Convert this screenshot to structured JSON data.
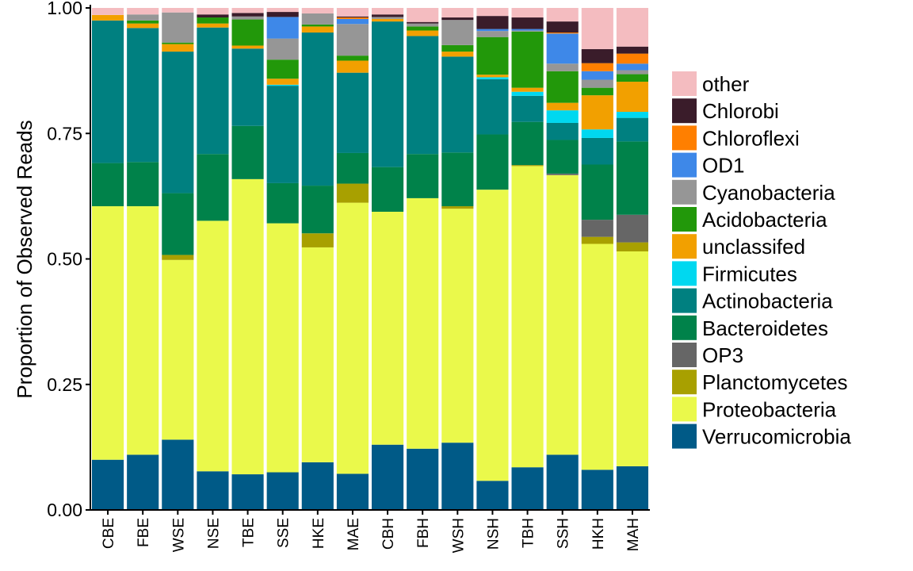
{
  "chart_data": {
    "type": "bar",
    "stacked": true,
    "ylabel": "Proportion of Observed Reads",
    "xlabel": "",
    "ylim": [
      0,
      1
    ],
    "yticks": [
      "0.00",
      "0.25",
      "0.50",
      "0.75",
      "1.00"
    ],
    "grid": false,
    "legend_position": "right",
    "categories": [
      "CBE",
      "FBE",
      "WSE",
      "NSE",
      "TBE",
      "SSE",
      "HKE",
      "MAE",
      "CBH",
      "FBH",
      "WSH",
      "NSH",
      "TBH",
      "SSH",
      "HKH",
      "MAH"
    ],
    "series": [
      {
        "name": "Verrucomicrobia",
        "color": "#005a87",
        "values": [
          0.1,
          0.11,
          0.14,
          0.077,
          0.071,
          0.075,
          0.095,
          0.072,
          0.13,
          0.122,
          0.134,
          0.058,
          0.085,
          0.11,
          0.08,
          0.087
        ]
      },
      {
        "name": "Proteobacteria",
        "color": "#eaf94b",
        "values": [
          0.505,
          0.495,
          0.358,
          0.499,
          0.588,
          0.496,
          0.428,
          0.54,
          0.464,
          0.499,
          0.466,
          0.58,
          0.6,
          0.557,
          0.45,
          0.428
        ]
      },
      {
        "name": "Planctomycetes",
        "color": "#a8a000",
        "values": [
          0,
          0,
          0.01,
          0,
          0,
          0,
          0.028,
          0.038,
          0,
          0,
          0.005,
          0,
          0.002,
          0,
          0.014,
          0.018
        ]
      },
      {
        "name": "OP3",
        "color": "#666666",
        "values": [
          0,
          0,
          0,
          0,
          0,
          0,
          0,
          0,
          0,
          0,
          0,
          0,
          0,
          0.003,
          0.034,
          0.055
        ]
      },
      {
        "name": "Bacteroidetes",
        "color": "#00824a",
        "values": [
          0.086,
          0.088,
          0.123,
          0.133,
          0.106,
          0.08,
          0.095,
          0.061,
          0.089,
          0.088,
          0.107,
          0.11,
          0.086,
          0.067,
          0.11,
          0.146
        ]
      },
      {
        "name": "Actinobacteria",
        "color": "#008080",
        "values": [
          0.284,
          0.267,
          0.282,
          0.252,
          0.154,
          0.194,
          0.305,
          0.16,
          0.29,
          0.235,
          0.191,
          0.11,
          0.052,
          0.034,
          0.053,
          0.047
        ]
      },
      {
        "name": "Firmicutes",
        "color": "#00d8f0",
        "values": [
          0,
          0,
          0,
          0,
          0,
          0.002,
          0,
          0,
          0,
          0,
          0,
          0.004,
          0.008,
          0.025,
          0.017,
          0.012
        ]
      },
      {
        "name": "unclassifed",
        "color": "#f2a000",
        "values": [
          0.011,
          0.009,
          0.015,
          0.008,
          0.006,
          0.012,
          0.012,
          0.024,
          0.005,
          0.011,
          0.01,
          0.005,
          0.008,
          0.015,
          0.068,
          0.06
        ]
      },
      {
        "name": "Acidobacteria",
        "color": "#22980a",
        "values": [
          0,
          0.006,
          0.003,
          0.012,
          0.052,
          0.038,
          0.004,
          0.01,
          0,
          0.008,
          0.013,
          0.075,
          0.112,
          0.063,
          0.015,
          0.015
        ]
      },
      {
        "name": "Cyanobacteria",
        "color": "#969696",
        "values": [
          0,
          0.012,
          0.06,
          0,
          0.006,
          0.042,
          0.022,
          0.063,
          0.004,
          0.006,
          0.05,
          0.012,
          0.002,
          0.015,
          0.016,
          0.008
        ]
      },
      {
        "name": "OD1",
        "color": "#3e88e8",
        "values": [
          0,
          0,
          0,
          0,
          0,
          0.043,
          0,
          0.01,
          0,
          0,
          0,
          0.004,
          0.003,
          0.06,
          0.017,
          0.013
        ]
      },
      {
        "name": "Chloroflexi",
        "color": "#ff7f00",
        "values": [
          0,
          0,
          0,
          0,
          0,
          0,
          0,
          0.003,
          0,
          0,
          0,
          0,
          0,
          0.002,
          0.016,
          0.02
        ]
      },
      {
        "name": "Chlorobi",
        "color": "#3a1c2a",
        "values": [
          0,
          0,
          0,
          0.006,
          0.007,
          0.01,
          0,
          0.002,
          0.005,
          0.003,
          0.005,
          0.026,
          0.023,
          0.022,
          0.028,
          0.014
        ]
      },
      {
        "name": "other",
        "color": "#f4bcc0",
        "values": [
          0.014,
          0.013,
          0.009,
          0.013,
          0.01,
          0.008,
          0.011,
          0.017,
          0.013,
          0.028,
          0.019,
          0.016,
          0.019,
          0.027,
          0.082,
          0.077
        ]
      }
    ],
    "legend_order": [
      "other",
      "Chlorobi",
      "Chloroflexi",
      "OD1",
      "Cyanobacteria",
      "Acidobacteria",
      "unclassifed",
      "Firmicutes",
      "Actinobacteria",
      "Bacteroidetes",
      "OP3",
      "Planctomycetes",
      "Proteobacteria",
      "Verrucomicrobia"
    ]
  }
}
